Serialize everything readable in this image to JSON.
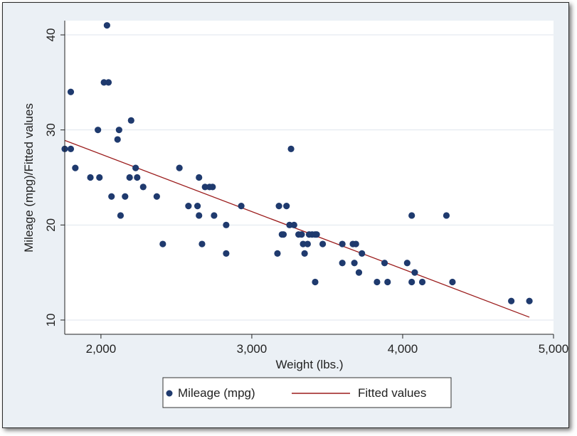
{
  "chart_data": {
    "type": "scatter",
    "xlabel": "Weight (lbs.)",
    "ylabel": "Mileage (mpg)/Fitted values",
    "xlim": [
      1760,
      5000
    ],
    "ylim": [
      8.5,
      41.5
    ],
    "x_ticks": [
      2000,
      3000,
      4000,
      5000
    ],
    "x_tick_labels": [
      "2,000",
      "3,000",
      "4,000",
      "5,000"
    ],
    "y_ticks": [
      10,
      20,
      30,
      40
    ],
    "y_tick_labels": [
      "10",
      "20",
      "30",
      "40"
    ],
    "grid": "horizontal",
    "legend_position": "bottom",
    "colors": {
      "points": "#1f3a6e",
      "fit_line": "#9b1c1c",
      "plot_bg": "#ffffff",
      "outer_bg": "#ebf0f5",
      "grid": "#dfe6ee"
    },
    "series": [
      {
        "name": "Mileage (mpg)",
        "kind": "scatter",
        "points": [
          [
            1760,
            28
          ],
          [
            1800,
            28
          ],
          [
            1800,
            34
          ],
          [
            1830,
            26
          ],
          [
            1930,
            25
          ],
          [
            1980,
            30
          ],
          [
            1990,
            25
          ],
          [
            2020,
            35
          ],
          [
            2040,
            41
          ],
          [
            2050,
            35
          ],
          [
            2070,
            23
          ],
          [
            2110,
            29
          ],
          [
            2120,
            30
          ],
          [
            2130,
            21
          ],
          [
            2160,
            23
          ],
          [
            2190,
            25
          ],
          [
            2200,
            31
          ],
          [
            2230,
            26
          ],
          [
            2240,
            25
          ],
          [
            2280,
            24
          ],
          [
            2370,
            23
          ],
          [
            2410,
            18
          ],
          [
            2520,
            26
          ],
          [
            2580,
            22
          ],
          [
            2640,
            22
          ],
          [
            2650,
            25
          ],
          [
            2650,
            21
          ],
          [
            2670,
            18
          ],
          [
            2690,
            24
          ],
          [
            2720,
            24
          ],
          [
            2740,
            24
          ],
          [
            2750,
            21
          ],
          [
            2830,
            20
          ],
          [
            2830,
            17
          ],
          [
            2930,
            22
          ],
          [
            3170,
            17
          ],
          [
            3180,
            22
          ],
          [
            3200,
            19
          ],
          [
            3210,
            19
          ],
          [
            3230,
            22
          ],
          [
            3250,
            20
          ],
          [
            3260,
            28
          ],
          [
            3280,
            20
          ],
          [
            3310,
            19
          ],
          [
            3330,
            19
          ],
          [
            3340,
            18
          ],
          [
            3350,
            17
          ],
          [
            3370,
            18
          ],
          [
            3380,
            19
          ],
          [
            3400,
            19
          ],
          [
            3420,
            19
          ],
          [
            3420,
            14
          ],
          [
            3430,
            19
          ],
          [
            3470,
            18
          ],
          [
            3600,
            16
          ],
          [
            3600,
            18
          ],
          [
            3670,
            18
          ],
          [
            3680,
            16
          ],
          [
            3690,
            18
          ],
          [
            3710,
            15
          ],
          [
            3730,
            17
          ],
          [
            3830,
            14
          ],
          [
            3880,
            16
          ],
          [
            3900,
            14
          ],
          [
            4030,
            16
          ],
          [
            4060,
            21
          ],
          [
            4060,
            14
          ],
          [
            4080,
            15
          ],
          [
            4130,
            14
          ],
          [
            4290,
            21
          ],
          [
            4330,
            14
          ],
          [
            4720,
            12
          ],
          [
            4840,
            12
          ]
        ]
      },
      {
        "name": "Fitted values",
        "kind": "line",
        "points": [
          [
            1760,
            28.9
          ],
          [
            4840,
            10.3
          ]
        ]
      }
    ]
  }
}
